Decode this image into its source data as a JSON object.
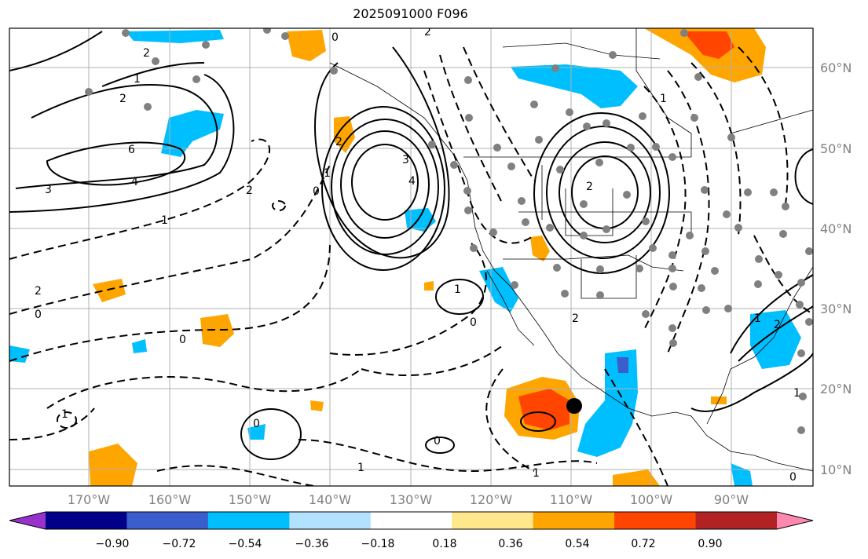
{
  "title": "2025091000 F096",
  "lat_labels": [
    "60°N",
    "50°N",
    "40°N",
    "30°N",
    "20°N",
    "10°N"
  ],
  "lon_labels": [
    "170°W",
    "160°W",
    "150°W",
    "140°W",
    "130°W",
    "120°W",
    "110°W",
    "100°W",
    "90°W"
  ],
  "colorbar": {
    "ticks": [
      "−0.90",
      "−0.72",
      "−0.54",
      "−0.36",
      "−0.18",
      "0.18",
      "0.36",
      "0.54",
      "0.72",
      "0.90"
    ],
    "colors": [
      "#9932cc",
      "#00008b",
      "#3a5fcd",
      "#00bfff",
      "#b2e2ff",
      "#ffffff",
      "#ffe88c",
      "#ffa500",
      "#ff4500",
      "#b22222",
      "#ff88b0"
    ]
  },
  "contour_labels": [
    "2",
    "1",
    "2",
    "6",
    "3",
    "4",
    "1",
    "2",
    "0",
    "2",
    "1",
    "3",
    "4",
    "0",
    "1",
    "2",
    "0",
    "0",
    "1",
    "2",
    "0",
    "1",
    "0",
    "1",
    "2",
    "0",
    "2",
    "1",
    "1",
    "0",
    "1",
    "2"
  ],
  "marker_dot": "black"
}
